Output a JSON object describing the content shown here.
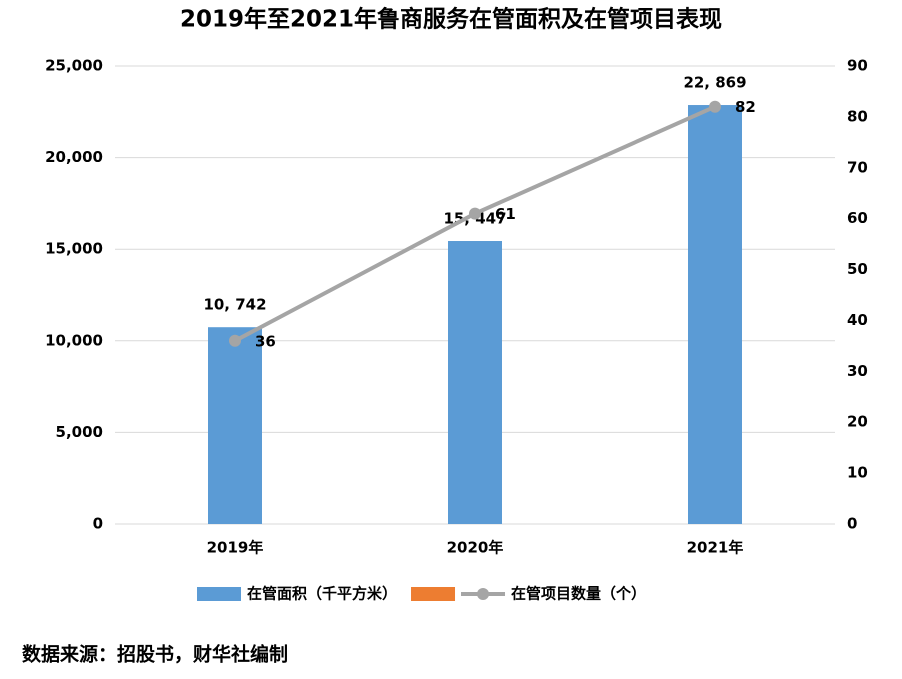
{
  "chart_data": {
    "type": "bar-line",
    "title": "2019年至2021年鲁商服务在管面积及在管项目表现",
    "categories": [
      "2019年",
      "2020年",
      "2021年"
    ],
    "series": [
      {
        "name": "在管面积（千平方米）",
        "color": "#5b9bd5",
        "type": "bar",
        "values": [
          10742,
          15447,
          22869
        ],
        "value_labels": [
          "10, 742",
          "15, 447",
          "22, 869"
        ]
      },
      {
        "name": null,
        "color": "#ed7d31",
        "type": "bar",
        "values": [
          null,
          null,
          null
        ]
      },
      {
        "name": "在管项目数量（个）",
        "color": "#a5a5a5",
        "type": "line",
        "axis": "y2",
        "values": [
          36,
          61,
          82
        ]
      }
    ],
    "ylim": [
      0,
      25000
    ],
    "yticks": [
      0,
      {
        "value": 5000,
        "label": "5,000"
      },
      {
        "value": 10000,
        "label": "10,000"
      },
      {
        "value": 15000,
        "label": "15,000"
      },
      {
        "value": 20000,
        "label": "20,000"
      },
      {
        "value": 25000,
        "label": "25,000"
      }
    ],
    "y2lim": [
      0,
      90
    ],
    "y2ticks": [
      0,
      10,
      20,
      30,
      40,
      50,
      60,
      70,
      80,
      90
    ],
    "grid": true,
    "legend": "bottom",
    "source": "数据来源：招股书，财华社编制"
  }
}
